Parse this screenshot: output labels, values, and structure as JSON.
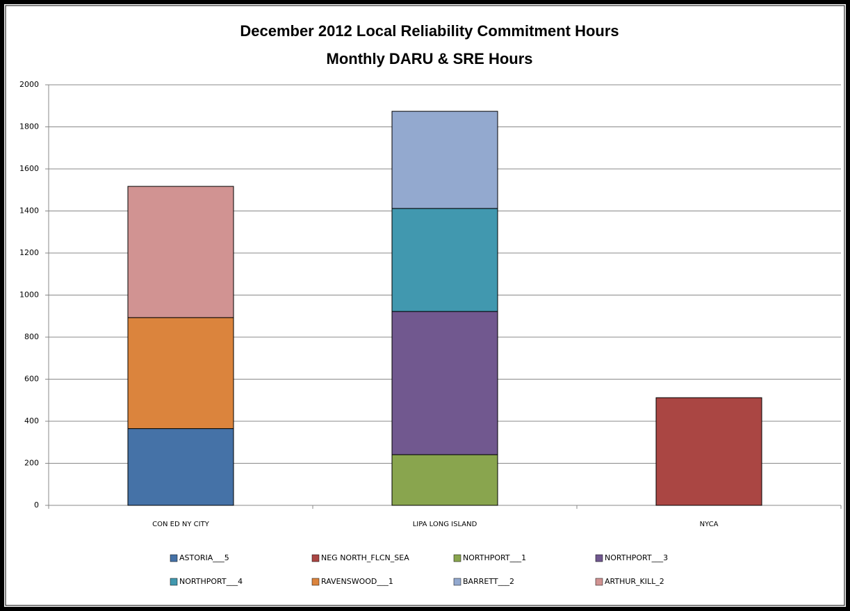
{
  "chart_data": {
    "type": "stacked_bar",
    "title": "December 2012 Local Reliability Commitment Hours",
    "subtitle": "Monthly DARU & SRE Hours",
    "categories": [
      "CON ED NY CITY",
      "LIPA LONG ISLAND",
      "NYCA"
    ],
    "series": [
      {
        "name": "ASTORIA___5",
        "color": "#4572a7",
        "values": [
          365,
          null,
          null
        ]
      },
      {
        "name": "NEG NORTH_FLCN_SEA",
        "color": "#aa4643",
        "values": [
          null,
          null,
          512
        ]
      },
      {
        "name": "NORTHPORT___1",
        "color": "#89a54e",
        "values": [
          null,
          241,
          null
        ]
      },
      {
        "name": "NORTHPORT___3",
        "color": "#71588f",
        "values": [
          null,
          681,
          null
        ]
      },
      {
        "name": "NORTHPORT___4",
        "color": "#4198af",
        "values": [
          null,
          490,
          null
        ]
      },
      {
        "name": "RAVENSWOOD___1",
        "color": "#db843d",
        "values": [
          528,
          null,
          null
        ]
      },
      {
        "name": "BARRETT___2",
        "color": "#93a9cf",
        "values": [
          null,
          462,
          null
        ]
      },
      {
        "name": "ARTHUR_KILL_2",
        "color": "#d19392",
        "values": [
          624,
          null,
          null
        ]
      }
    ],
    "ylim": [
      0,
      2000
    ],
    "yticks": [
      0,
      200,
      400,
      600,
      800,
      1000,
      1200,
      1400,
      1600,
      1800,
      2000
    ],
    "grid": true,
    "legend": "bottom"
  }
}
